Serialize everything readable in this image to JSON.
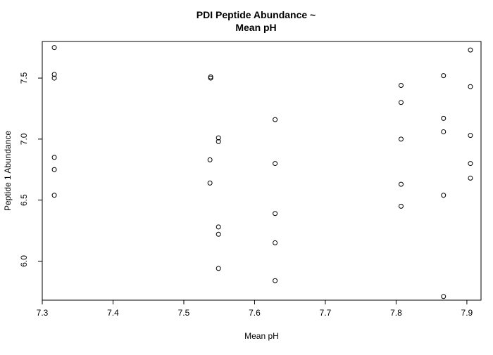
{
  "chart_data": {
    "type": "scatter",
    "title": "PDI Peptide Abundance ~",
    "subtitle": "Mean pH",
    "xlabel": "Mean pH",
    "ylabel": "Peptide 1 Abundance",
    "xlim": [
      7.3,
      7.92
    ],
    "ylim": [
      5.68,
      7.8
    ],
    "x_ticks": [
      "7.3",
      "7.4",
      "7.5",
      "7.6",
      "7.7",
      "7.8",
      "7.9"
    ],
    "y_ticks": [
      "6.0",
      "6.5",
      "7.0",
      "7.5"
    ],
    "grid": false,
    "marker": "open-circle",
    "points": [
      {
        "x": 7.317,
        "y": 7.75
      },
      {
        "x": 7.317,
        "y": 7.53
      },
      {
        "x": 7.317,
        "y": 7.5
      },
      {
        "x": 7.317,
        "y": 6.85
      },
      {
        "x": 7.317,
        "y": 6.75
      },
      {
        "x": 7.317,
        "y": 6.54
      },
      {
        "x": 7.538,
        "y": 7.51
      },
      {
        "x": 7.538,
        "y": 7.5
      },
      {
        "x": 7.537,
        "y": 6.83
      },
      {
        "x": 7.537,
        "y": 6.64
      },
      {
        "x": 7.549,
        "y": 7.01
      },
      {
        "x": 7.549,
        "y": 6.98
      },
      {
        "x": 7.549,
        "y": 6.28
      },
      {
        "x": 7.549,
        "y": 6.22
      },
      {
        "x": 7.549,
        "y": 5.94
      },
      {
        "x": 7.629,
        "y": 7.16
      },
      {
        "x": 7.629,
        "y": 6.8
      },
      {
        "x": 7.629,
        "y": 6.39
      },
      {
        "x": 7.629,
        "y": 6.15
      },
      {
        "x": 7.629,
        "y": 5.84
      },
      {
        "x": 7.807,
        "y": 7.44
      },
      {
        "x": 7.807,
        "y": 7.3
      },
      {
        "x": 7.807,
        "y": 7.0
      },
      {
        "x": 7.807,
        "y": 6.63
      },
      {
        "x": 7.807,
        "y": 6.45
      },
      {
        "x": 7.867,
        "y": 7.52
      },
      {
        "x": 7.867,
        "y": 7.17
      },
      {
        "x": 7.867,
        "y": 7.06
      },
      {
        "x": 7.867,
        "y": 6.54
      },
      {
        "x": 7.867,
        "y": 5.71
      },
      {
        "x": 7.905,
        "y": 7.73
      },
      {
        "x": 7.905,
        "y": 7.43
      },
      {
        "x": 7.905,
        "y": 7.03
      },
      {
        "x": 7.905,
        "y": 6.8
      },
      {
        "x": 7.905,
        "y": 6.68
      }
    ]
  }
}
